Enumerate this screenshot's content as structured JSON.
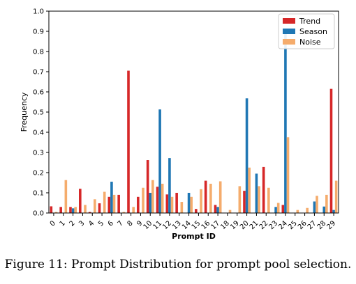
{
  "chart_data": {
    "type": "bar",
    "title": "",
    "xlabel": "Prompt ID",
    "ylabel": "Frequency",
    "ylim": [
      0,
      1.0
    ],
    "yticks": [
      "0.0",
      "0.1",
      "0.2",
      "0.3",
      "0.4",
      "0.5",
      "0.6",
      "0.7",
      "0.8",
      "0.9",
      "1.0"
    ],
    "categories": [
      "0",
      "1",
      "2",
      "3",
      "4",
      "5",
      "6",
      "7",
      "8",
      "9",
      "10",
      "11",
      "12",
      "13",
      "14",
      "15",
      "16",
      "17",
      "18",
      "19",
      "20",
      "21",
      "22",
      "23",
      "24",
      "25",
      "26",
      "27",
      "28",
      "29"
    ],
    "legend_position": "top-right",
    "grid": false,
    "series": [
      {
        "name": "Trend",
        "color": "#d62728",
        "values": [
          0.033,
          0.03,
          0.03,
          0.12,
          0.005,
          0.048,
          0.08,
          0.09,
          0.705,
          0.08,
          0.262,
          0.13,
          0.092,
          0.1,
          0.0,
          0.02,
          0.16,
          0.04,
          0.0,
          0.0,
          0.11,
          0.0,
          0.228,
          0.0,
          0.04,
          0.0,
          0.0,
          0.0,
          0.0,
          0.615
        ]
      },
      {
        "name": "Season",
        "color": "#1f77b4",
        "values": [
          0.0,
          0.0,
          0.023,
          0.0,
          0.0,
          0.0,
          0.155,
          0.0,
          0.0,
          0.0,
          0.1,
          0.513,
          0.272,
          0.0,
          0.1,
          0.0,
          0.0,
          0.03,
          0.0,
          0.0,
          0.568,
          0.195,
          0.0,
          0.03,
          0.908,
          0.0,
          0.0,
          0.057,
          0.032,
          0.015
        ]
      },
      {
        "name": "Noise",
        "color": "#f5ac6c",
        "values": [
          0.005,
          0.163,
          0.03,
          0.04,
          0.068,
          0.105,
          0.09,
          0.005,
          0.03,
          0.125,
          0.163,
          0.145,
          0.08,
          0.055,
          0.08,
          0.118,
          0.145,
          0.157,
          0.015,
          0.133,
          0.225,
          0.133,
          0.125,
          0.05,
          0.375,
          0.015,
          0.025,
          0.085,
          0.09,
          0.16
        ]
      }
    ]
  },
  "caption": "Figure 11: Prompt Distribution for prompt pool selection."
}
